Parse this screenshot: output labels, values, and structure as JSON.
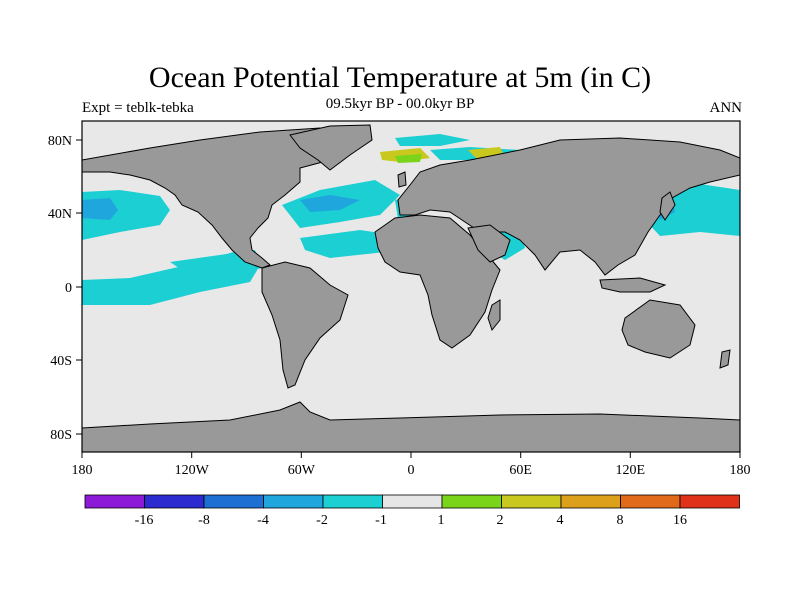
{
  "header": {
    "title": "Ocean Potential Temperature at 5m (in C)",
    "left_text": "Expt = teblk-tebka",
    "center_text": "09.5kyr BP - 00.0kyr BP",
    "right_text": "ANN"
  },
  "map": {
    "projection": "cylindrical equidistant",
    "lon_range": [
      -180,
      180
    ],
    "lat_range": [
      -90,
      90
    ],
    "lon_ticks": [
      {
        "value": -180,
        "label": "180"
      },
      {
        "value": -120,
        "label": "120W"
      },
      {
        "value": -60,
        "label": "60W"
      },
      {
        "value": 0,
        "label": "0"
      },
      {
        "value": 60,
        "label": "60E"
      },
      {
        "value": 120,
        "label": "120E"
      },
      {
        "value": 180,
        "label": "180"
      }
    ],
    "lat_ticks": [
      {
        "value": 80,
        "label": "80N"
      },
      {
        "value": 40,
        "label": "40N"
      },
      {
        "value": 0,
        "label": "0"
      },
      {
        "value": -40,
        "label": "40S"
      },
      {
        "value": -80,
        "label": "80S"
      }
    ],
    "land_color": "#999999",
    "ocean_color": "#e8e8e8"
  },
  "colorbar": {
    "labels": [
      "-16",
      "-8",
      "-4",
      "-2",
      "-1",
      "1",
      "2",
      "4",
      "8",
      "16"
    ],
    "colors": [
      "#8c1ad6",
      "#2b2bd0",
      "#1e6fd4",
      "#1fa6dc",
      "#1ccfd2",
      "#e6e6e6",
      "#7ad41a",
      "#c8c81e",
      "#dca01a",
      "#e06a1a",
      "#e03218"
    ]
  }
}
